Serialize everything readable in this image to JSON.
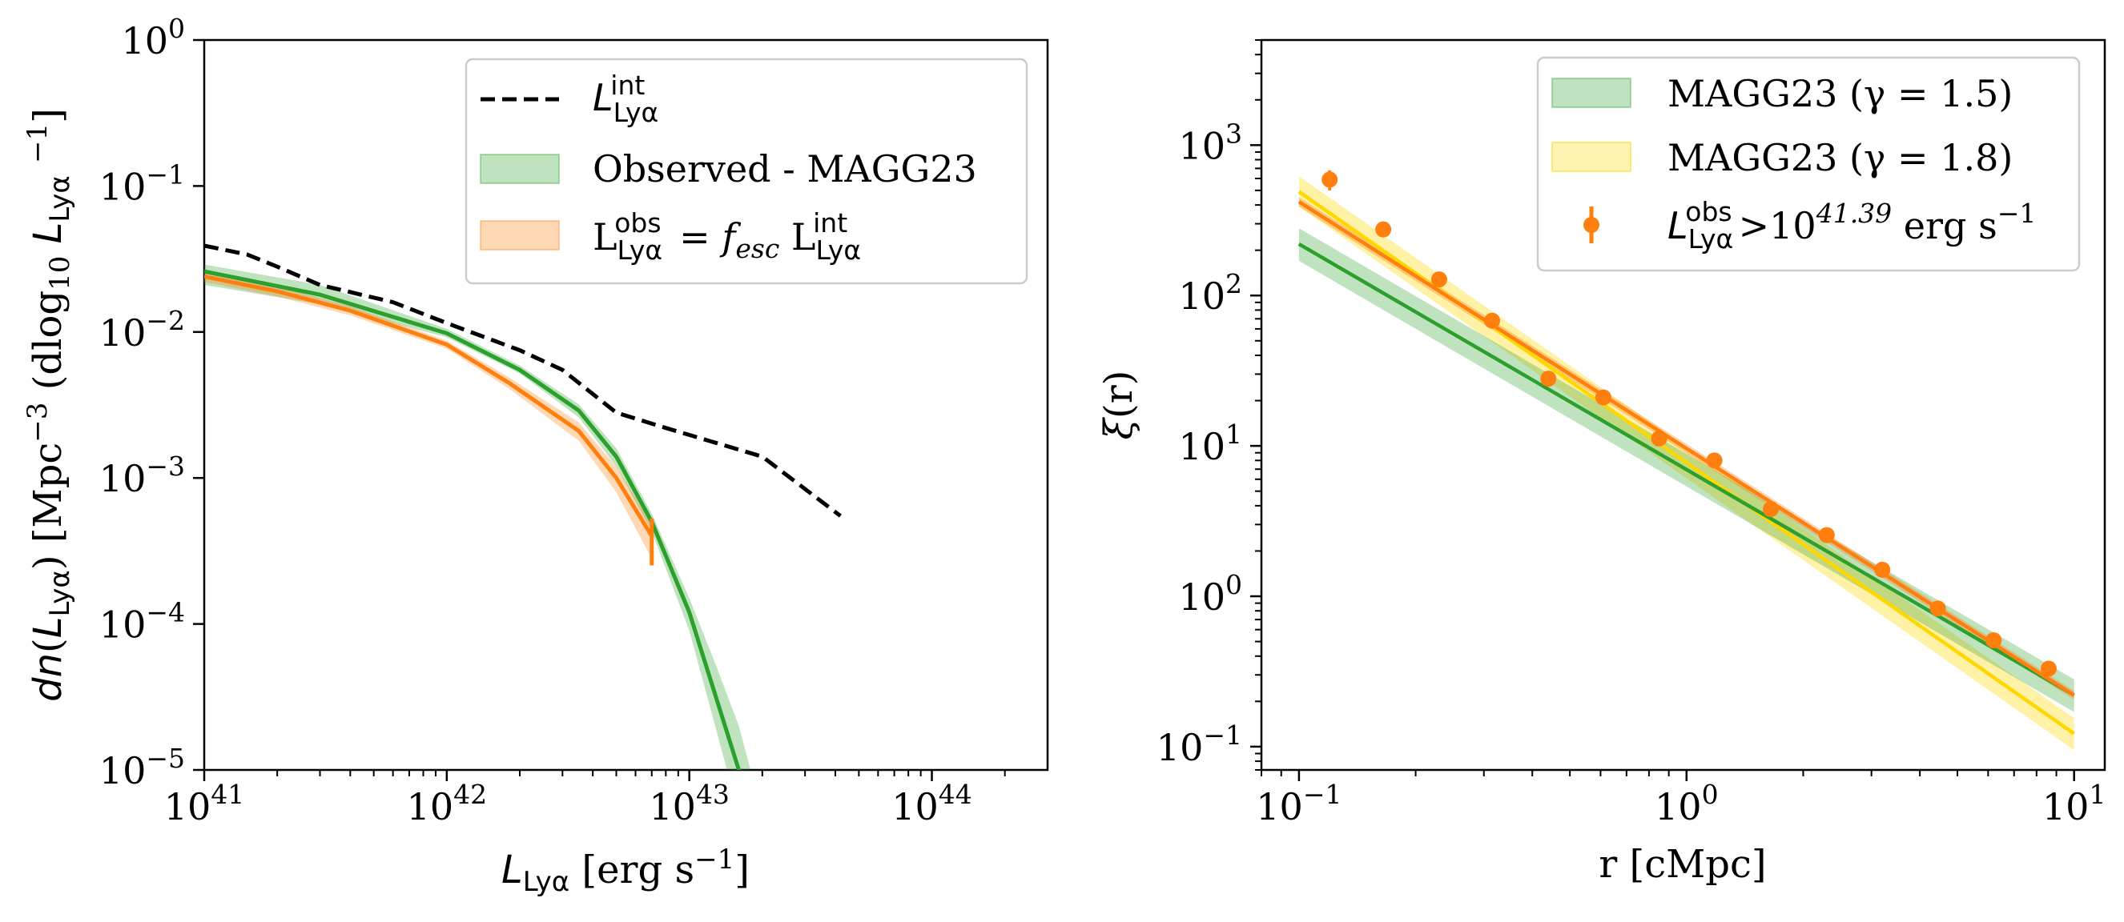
{
  "chart_data": [
    {
      "type": "line",
      "xlabel": "L_Lyα [erg s⁻¹]",
      "ylabel": "dn(L_Lyα) [Mpc⁻³ (dlog₁₀ L_Lyα⁻¹]",
      "xscale": "log",
      "yscale": "log",
      "xlim": [
        1e+41,
        3e+44
      ],
      "ylim": [
        1e-05,
        1
      ],
      "xticks": [
        "10^41",
        "10^42",
        "10^43",
        "10^44"
      ],
      "yticks": [
        "10^0",
        "10^-1",
        "10^-2",
        "10^-3",
        "10^-4",
        "10^-5"
      ],
      "legend_position": "top-right",
      "legend": [
        {
          "label_main": "L",
          "label_sub": "Lyα",
          "label_sup": "int",
          "style": "dashed",
          "color": "#000000"
        },
        {
          "label": "Observed - MAGG23",
          "style": "band",
          "color": "#2ca02c"
        },
        {
          "label": "L^obs_Lyα = f_esc L^int_Lyα",
          "style": "band",
          "color": "#ff7f0e"
        }
      ],
      "series": [
        {
          "role": "intrinsic-dashed",
          "color": "#000000",
          "x": [
            1e+41,
            1.5e+41,
            2e+41,
            3e+41,
            6e+41,
            1e+42,
            2e+42,
            3e+42,
            5e+42,
            8e+42,
            1.2e+43,
            2e+43,
            4.2e+43
          ],
          "y": [
            0.039,
            0.034,
            0.028,
            0.021,
            0.016,
            0.0115,
            0.0075,
            0.0055,
            0.0028,
            0.0022,
            0.0018,
            0.0014,
            0.00055
          ]
        },
        {
          "role": "observed-fit",
          "color": "#2ca02c",
          "x": [
            1e+41,
            3e+41,
            1e+42,
            2e+42,
            3.5e+42,
            5e+42,
            7e+42,
            1e+43,
            1.3e+43,
            1.6e+43,
            2e+43
          ],
          "y": [
            0.026,
            0.018,
            0.0098,
            0.0055,
            0.0029,
            0.0014,
            0.0005,
            0.00012,
            3e-05,
            1e-05,
            2e-06
          ],
          "band_lower": [
            0.021,
            0.0155,
            0.0092,
            0.0052,
            0.0026,
            0.0012,
            0.00043,
            9e-05,
            1.8e-05,
            5e-06,
            8e-07
          ],
          "band_upper": [
            0.029,
            0.021,
            0.0105,
            0.0059,
            0.0032,
            0.0016,
            0.00057,
            0.00015,
            5e-05,
            2e-05,
            5e-06
          ]
        },
        {
          "role": "escaped-fit",
          "color": "#ff7f0e",
          "x": [
            1e+41,
            2e+41,
            4e+41,
            1e+42,
            1.8e+42,
            3.5e+42,
            5e+42,
            7e+42
          ],
          "y": [
            0.024,
            0.019,
            0.014,
            0.0082,
            0.0045,
            0.0021,
            0.001,
            0.0004
          ],
          "band_lower": [
            0.022,
            0.0175,
            0.013,
            0.0077,
            0.0041,
            0.0018,
            0.0008,
            0.00028
          ],
          "band_upper": [
            0.026,
            0.0205,
            0.015,
            0.0087,
            0.0049,
            0.0024,
            0.0012,
            0.00048
          ]
        }
      ]
    },
    {
      "type": "scatter",
      "xlabel": "r [cMpc]",
      "ylabel": "ξ(r)",
      "xscale": "log",
      "yscale": "log",
      "xlim": [
        0.08,
        12
      ],
      "ylim": [
        0.07,
        5000
      ],
      "xticks": [
        "10^-1",
        "10^0",
        "10^1"
      ],
      "yticks": [
        "10^3",
        "10^2",
        "10^1",
        "10^0",
        "10^-1"
      ],
      "legend_position": "top-right",
      "legend": [
        {
          "label": "MAGG23 (γ = 1.5)",
          "style": "band",
          "color": "#2ca02c"
        },
        {
          "label": "MAGG23 (γ = 1.8)",
          "style": "band",
          "color": "#ffd700"
        },
        {
          "label": "L^obs_Lyα>10^41.39 erg s⁻¹",
          "style": "errorbar",
          "color": "#ff7f0e"
        }
      ],
      "series": [
        {
          "name": "MAGG23 (γ = 1.5)",
          "color": "#2ca02c",
          "x": [
            0.1,
            10
          ],
          "y": [
            220,
            0.22
          ],
          "band_lower_y": [
            170,
            0.17
          ],
          "band_upper_y": [
            280,
            0.28
          ]
        },
        {
          "name": "MAGG23 (γ = 1.8)",
          "color": "#ffd700",
          "x": [
            0.1,
            10
          ],
          "y": [
            490,
            0.122
          ],
          "band_lower_y": [
            390,
            0.095
          ],
          "band_upper_y": [
            620,
            0.155
          ]
        },
        {
          "role": "power-law-fit",
          "color": "#ff7f0e",
          "x": [
            0.1,
            10
          ],
          "y": [
            420,
            0.22
          ],
          "band_lower_y": [
            390,
            0.205
          ],
          "band_upper_y": [
            450,
            0.235
          ]
        },
        {
          "name": "L^obs_Lyα>10^41.39 erg s⁻¹",
          "color": "#ff7f0e",
          "x": [
            0.12,
            0.165,
            0.23,
            0.315,
            0.44,
            0.61,
            0.85,
            1.18,
            1.65,
            2.3,
            3.2,
            4.45,
            6.2,
            8.6
          ],
          "y": [
            590,
            275,
            128,
            68,
            28,
            21,
            11.2,
            8.0,
            3.8,
            2.55,
            1.5,
            0.83,
            0.51,
            0.33
          ],
          "yerr": [
            90,
            30,
            12,
            6,
            3,
            2,
            1.1,
            0.7,
            0.35,
            0.22,
            0.13,
            0.07,
            0.04,
            0.03
          ]
        }
      ]
    }
  ]
}
